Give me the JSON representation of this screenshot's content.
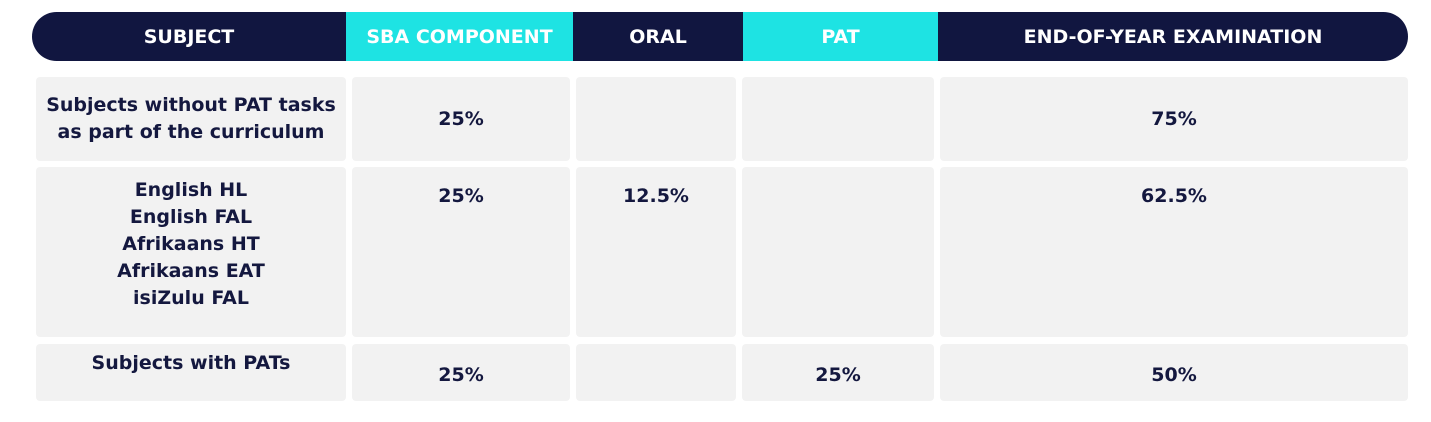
{
  "header": [
    "SUBJECT",
    "SBA COMPONENT",
    "ORAL",
    "PAT",
    "END-OF-YEAR EXAMINATION"
  ],
  "rows": [
    {
      "subject": [
        "Subjects without PAT tasks",
        "as part of the curriculum"
      ],
      "sba": "25%",
      "eoy": "75%"
    },
    {
      "subject": [
        "English HL",
        "English FAL",
        "Afrikaans HT",
        "Afrikaans EAT",
        "isiZulu FAL"
      ],
      "sba": "25%",
      "oral": "12.5%",
      "eoy": "62.5%"
    },
    {
      "subject": [
        "Subjects with PATs"
      ],
      "sba": "25%",
      "pat": "25%",
      "eoy": "50%"
    }
  ]
}
